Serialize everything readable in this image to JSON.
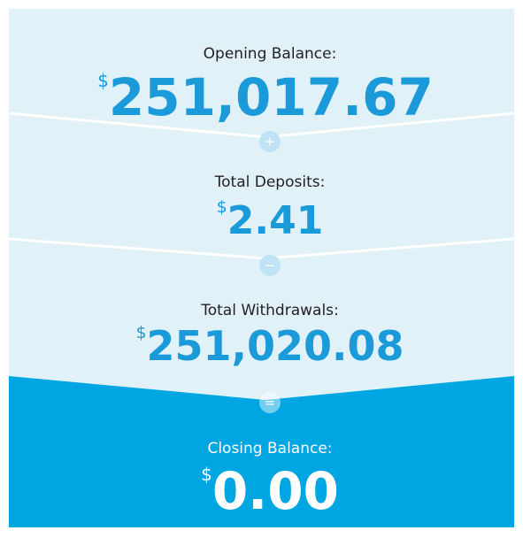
{
  "sections": [
    {
      "label": "Opening Balance:",
      "currency": "$",
      "amount": "251,017.67"
    },
    {
      "label": "Total Deposits:",
      "currency": "$",
      "amount": "2.41"
    },
    {
      "label": "Total Withdrawals:",
      "currency": "$",
      "amount": "251,020.08"
    },
    {
      "label": "Closing Balance:",
      "currency": "$",
      "amount": "0.00"
    }
  ],
  "operators": [
    "+",
    "−",
    "="
  ]
}
